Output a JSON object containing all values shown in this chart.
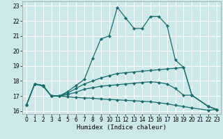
{
  "xlabel": "Humidex (Indice chaleur)",
  "background_color": "#cce8e8",
  "grid_color": "#ffffff",
  "line_color": "#1a6b6b",
  "xlim": [
    -0.5,
    23.5
  ],
  "ylim": [
    15.8,
    23.3
  ],
  "yticks": [
    16,
    17,
    18,
    19,
    20,
    21,
    22,
    23
  ],
  "xticks": [
    0,
    1,
    2,
    3,
    4,
    5,
    6,
    7,
    8,
    9,
    10,
    11,
    12,
    13,
    14,
    15,
    16,
    17,
    18,
    19,
    20,
    21,
    22,
    23
  ],
  "lines": [
    {
      "x": [
        0,
        1,
        2,
        3,
        4,
        5,
        6,
        7,
        8,
        9,
        10,
        11,
        12,
        13,
        14,
        15,
        16,
        17,
        18,
        19,
        20,
        22,
        23
      ],
      "y": [
        16.4,
        17.8,
        17.7,
        17.0,
        17.0,
        17.3,
        17.7,
        18.1,
        19.5,
        20.8,
        21.0,
        22.9,
        22.2,
        21.5,
        21.5,
        22.3,
        22.3,
        21.7,
        19.4,
        18.9,
        17.05,
        16.3,
        16.1
      ]
    },
    {
      "x": [
        0,
        1,
        2,
        3,
        4,
        5,
        6,
        7,
        8,
        9,
        10,
        11,
        12,
        13,
        14,
        15,
        16,
        17,
        18,
        19,
        20,
        22,
        23
      ],
      "y": [
        16.4,
        17.8,
        17.7,
        17.0,
        17.0,
        17.2,
        17.5,
        17.8,
        18.0,
        18.2,
        18.35,
        18.5,
        18.55,
        18.6,
        18.65,
        18.7,
        18.75,
        18.8,
        18.85,
        18.9,
        17.05,
        16.3,
        16.1
      ]
    },
    {
      "x": [
        0,
        1,
        2,
        3,
        4,
        5,
        6,
        7,
        8,
        9,
        10,
        11,
        12,
        13,
        14,
        15,
        16,
        17,
        18,
        19,
        20,
        22,
        23
      ],
      "y": [
        16.4,
        17.8,
        17.7,
        17.0,
        17.0,
        17.1,
        17.25,
        17.45,
        17.55,
        17.65,
        17.7,
        17.75,
        17.8,
        17.85,
        17.9,
        17.95,
        17.9,
        17.8,
        17.5,
        17.05,
        17.05,
        16.3,
        16.1
      ]
    },
    {
      "x": [
        0,
        1,
        2,
        3,
        4,
        5,
        6,
        7,
        8,
        9,
        10,
        11,
        12,
        13,
        14,
        15,
        16,
        17,
        18,
        19,
        20,
        22,
        23
      ],
      "y": [
        16.4,
        17.8,
        17.65,
        17.0,
        17.0,
        16.95,
        16.9,
        16.87,
        16.85,
        16.8,
        16.77,
        16.74,
        16.71,
        16.68,
        16.65,
        16.62,
        16.55,
        16.48,
        16.38,
        16.3,
        16.2,
        16.05,
        16.1
      ]
    }
  ]
}
